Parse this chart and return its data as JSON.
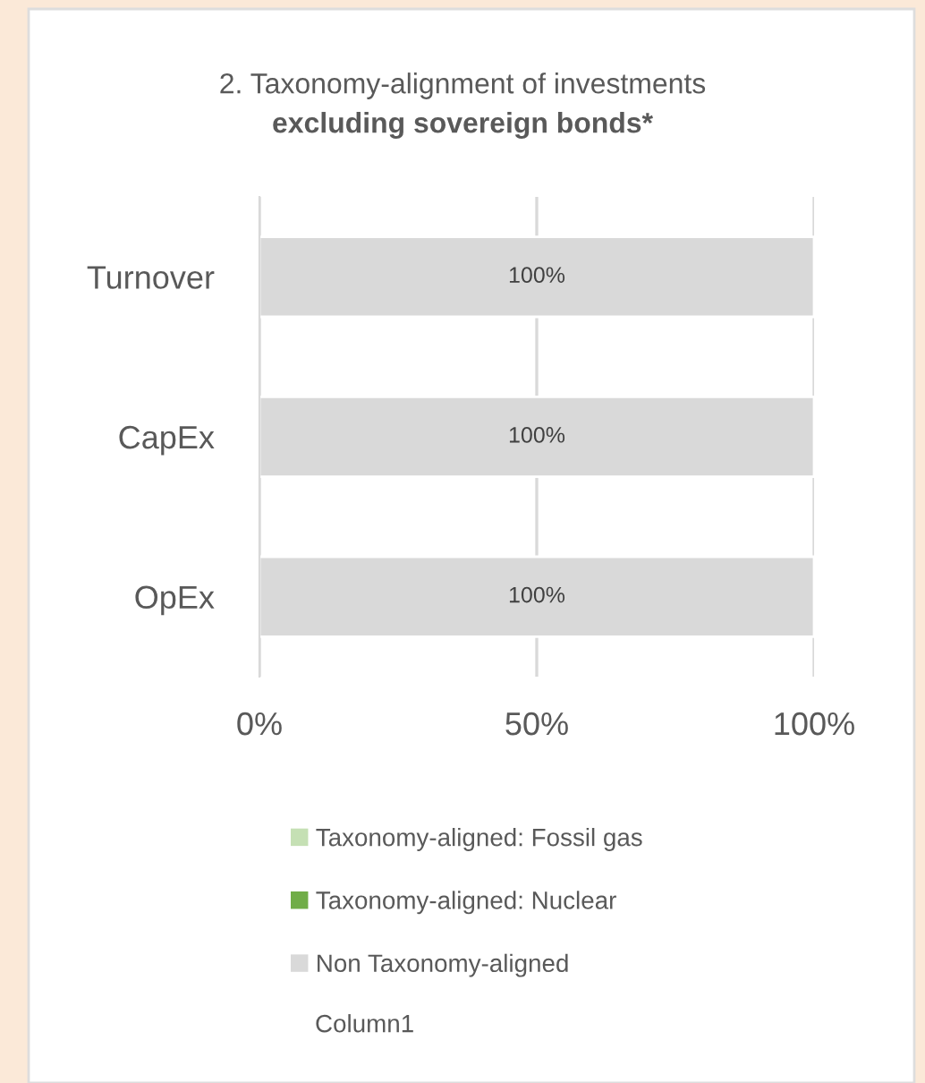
{
  "chart_data": {
    "type": "bar",
    "orientation": "horizontal",
    "stacked": true,
    "title": "2. Taxonomy-alignment of investments",
    "subtitle": "excluding sovereign bonds*",
    "categories": [
      "Turnover",
      "CapEx",
      "OpEx"
    ],
    "series": [
      {
        "name": "Taxonomy-aligned: Fossil gas",
        "color": "#c5e0b4",
        "values": [
          0,
          0,
          0
        ],
        "value_labels": [
          null,
          null,
          null
        ]
      },
      {
        "name": "Taxonomy-aligned: Nuclear",
        "color": "#70ad47",
        "values": [
          0,
          0,
          0
        ],
        "value_labels": [
          null,
          null,
          null
        ]
      },
      {
        "name": "Non Taxonomy-aligned",
        "color": "#d9d9d9",
        "values": [
          100,
          100,
          100
        ],
        "value_labels": [
          "100%",
          "100%",
          "100%"
        ]
      }
    ],
    "annotations": [
      "Column1"
    ],
    "xlim": [
      0,
      100
    ],
    "xticks": [
      {
        "value": 0,
        "label": "0%"
      },
      {
        "value": 50,
        "label": "50%"
      },
      {
        "value": 100,
        "label": "100%"
      }
    ],
    "grid": "x",
    "legend": "bottom"
  }
}
